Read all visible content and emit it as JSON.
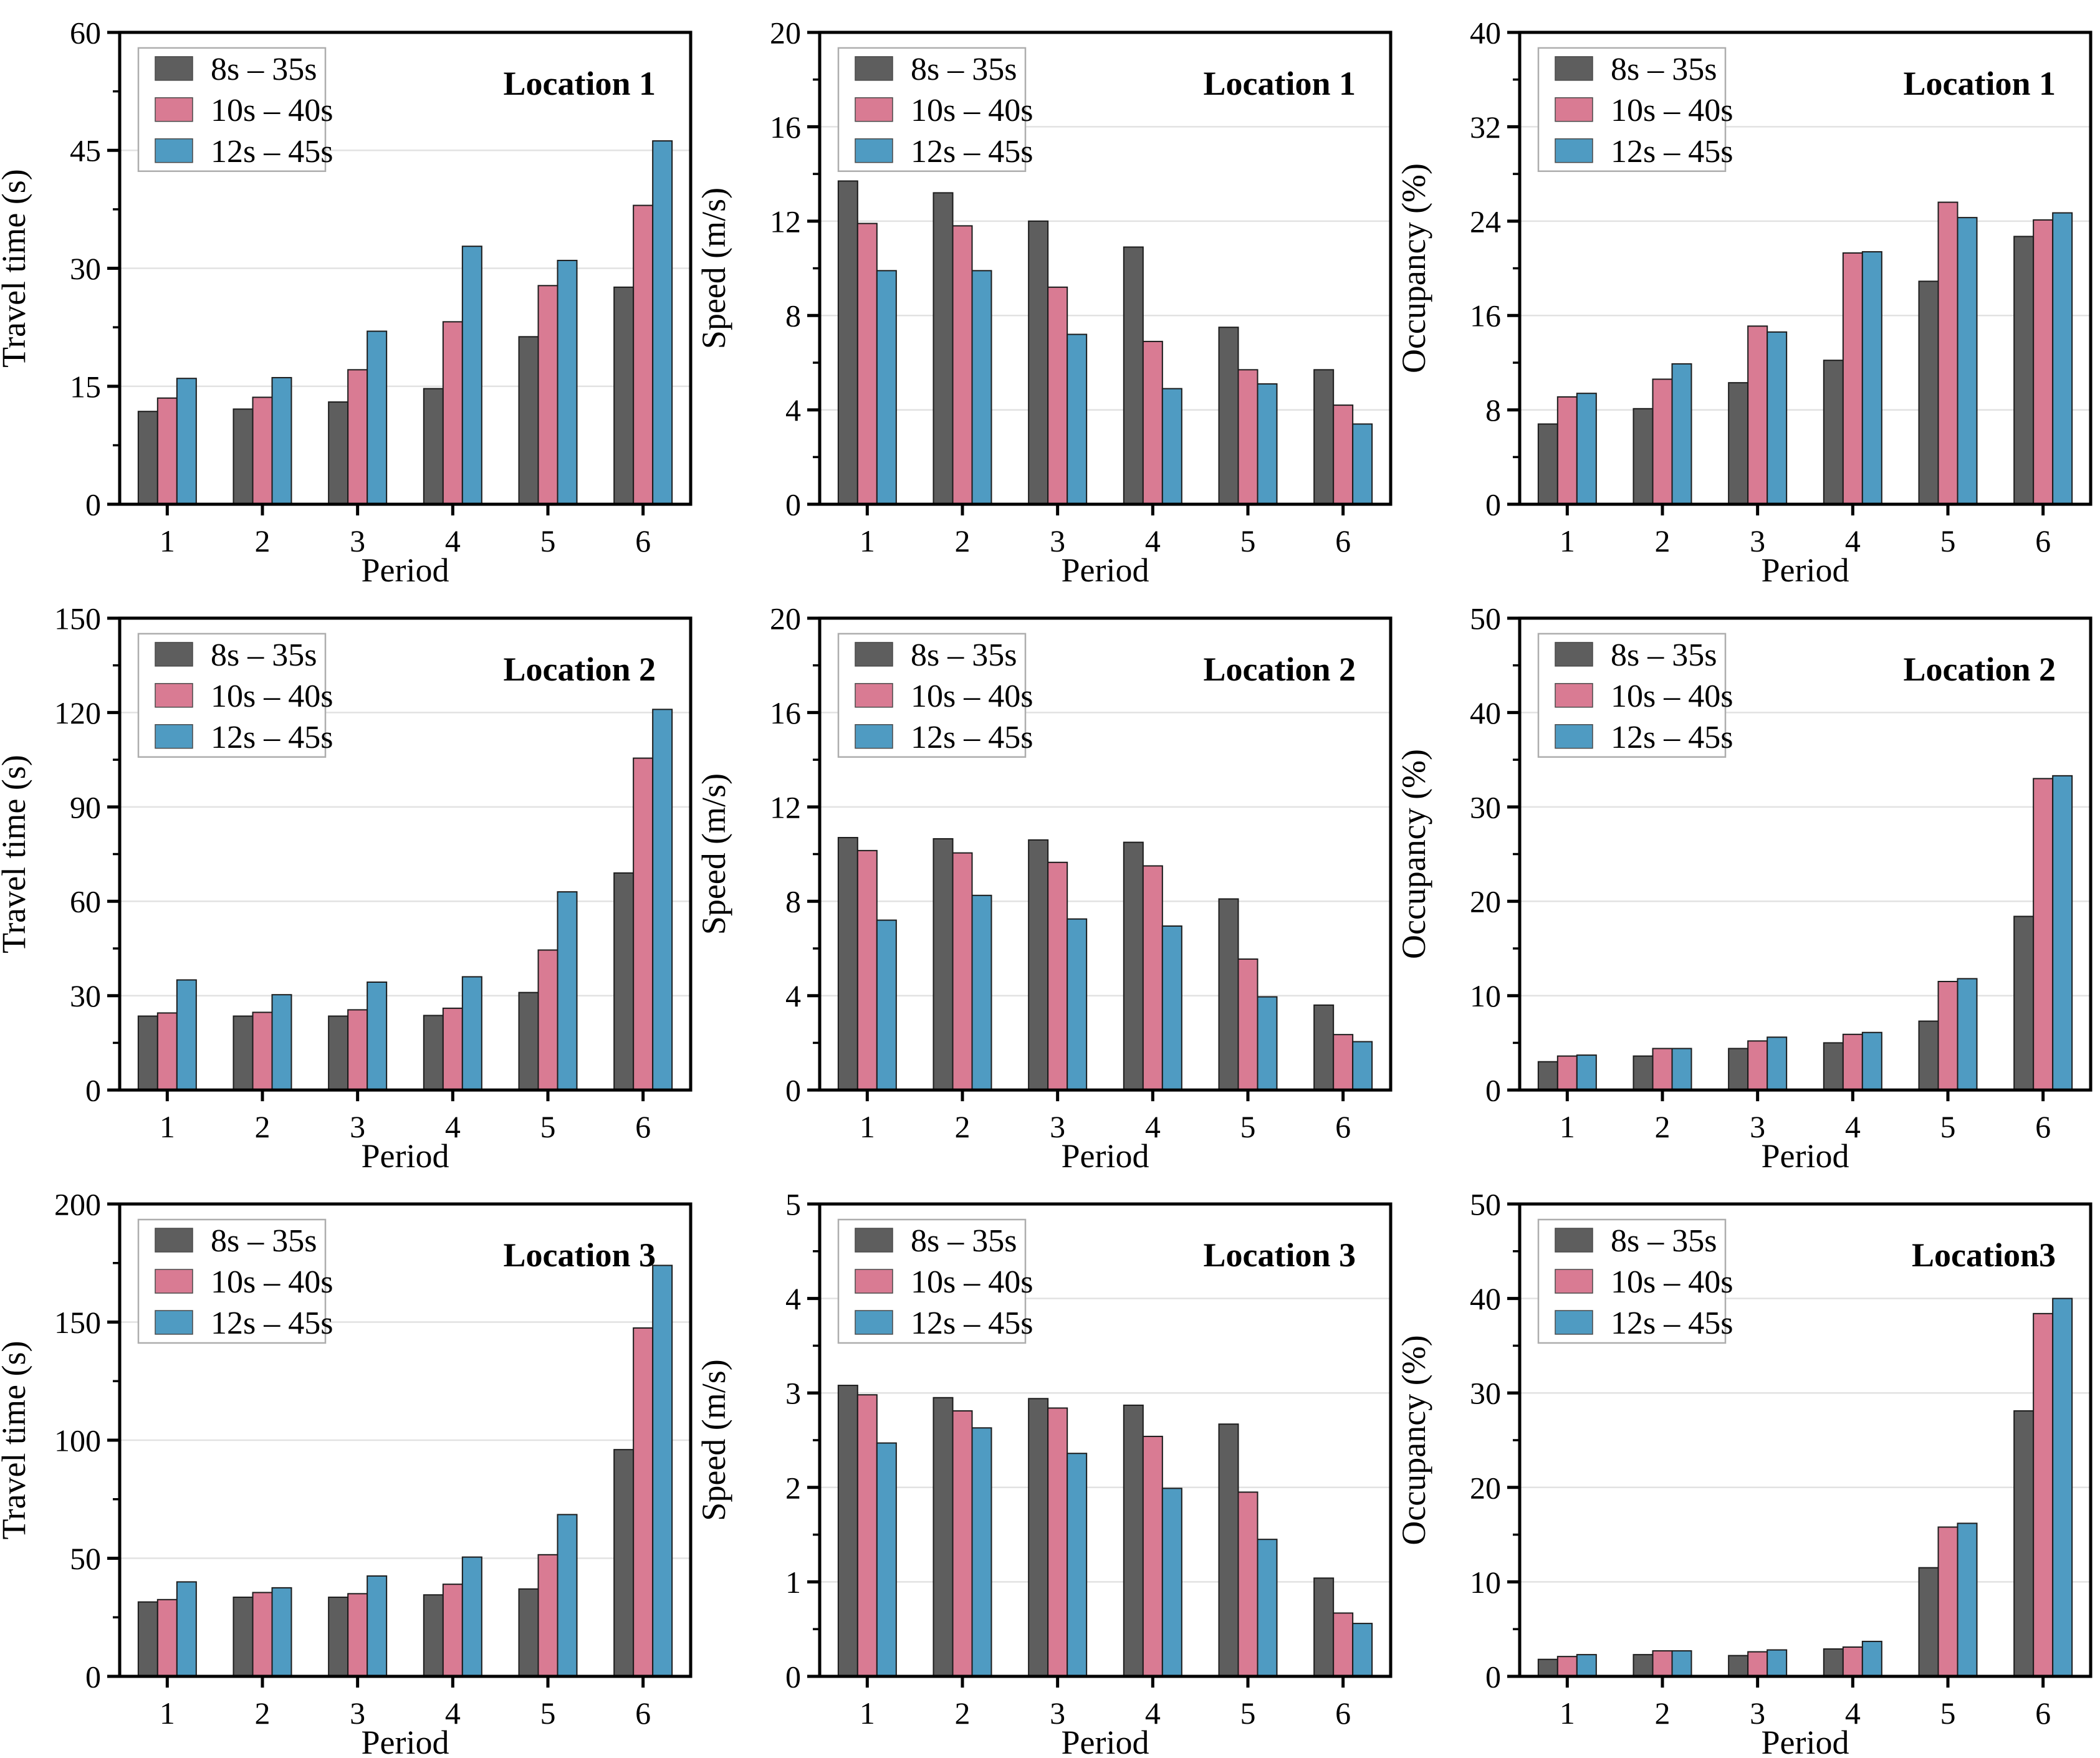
{
  "figure": {
    "categories": [
      "1",
      "2",
      "3",
      "4",
      "5",
      "6"
    ],
    "xlabel": "Period",
    "legend": {
      "position": "top-left",
      "items": [
        "8s – 35s",
        "10s – 40s",
        "12s – 45s"
      ]
    }
  },
  "style": {
    "series_colors": [
      "#5E5E5E",
      "#D97B93",
      "#4F9BC2"
    ],
    "bar_edge_color": "#1c1c1c",
    "grid_color": "#E2E2E2",
    "frame_color": "#000000",
    "legend_border_color": "#ADADAD",
    "background_color": "#ffffff"
  },
  "chart_data": [
    {
      "type": "bar",
      "title": "Location 1",
      "ylabel": "Travel time (s)",
      "xlabel": "Period",
      "ylim": [
        0,
        60
      ],
      "yticks": [
        0,
        15,
        30,
        45,
        60
      ],
      "grid": true,
      "legend_position": "top-left",
      "categories": [
        "1",
        "2",
        "3",
        "4",
        "5",
        "6"
      ],
      "series": [
        {
          "name": "8s – 35s",
          "values": [
            11.8,
            12.1,
            13.0,
            14.7,
            21.3,
            27.6
          ]
        },
        {
          "name": "10s – 40s",
          "values": [
            13.5,
            13.6,
            17.1,
            23.2,
            27.8,
            38.0
          ]
        },
        {
          "name": "12s – 45s",
          "values": [
            16.0,
            16.1,
            22.0,
            32.8,
            31.0,
            46.2
          ]
        }
      ]
    },
    {
      "type": "bar",
      "title": "Location 1",
      "ylabel": "Speed (m/s)",
      "xlabel": "Period",
      "ylim": [
        0,
        20
      ],
      "yticks": [
        0,
        4,
        8,
        12,
        16,
        20
      ],
      "grid": true,
      "legend_position": "top-left",
      "categories": [
        "1",
        "2",
        "3",
        "4",
        "5",
        "6"
      ],
      "series": [
        {
          "name": "8s – 35s",
          "values": [
            13.7,
            13.2,
            12.0,
            10.9,
            7.5,
            5.7
          ]
        },
        {
          "name": "10s – 40s",
          "values": [
            11.9,
            11.8,
            9.2,
            6.9,
            5.7,
            4.2
          ]
        },
        {
          "name": "12s – 45s",
          "values": [
            9.9,
            9.9,
            7.2,
            4.9,
            5.1,
            3.4
          ]
        }
      ]
    },
    {
      "type": "bar",
      "title": "Location 1",
      "ylabel": "Occupancy (%)",
      "xlabel": "Period",
      "ylim": [
        0,
        40
      ],
      "yticks": [
        0,
        8,
        16,
        24,
        32,
        40
      ],
      "grid": true,
      "legend_position": "top-left",
      "categories": [
        "1",
        "2",
        "3",
        "4",
        "5",
        "6"
      ],
      "series": [
        {
          "name": "8s – 35s",
          "values": [
            6.8,
            8.1,
            10.3,
            12.2,
            18.9,
            22.7
          ]
        },
        {
          "name": "10s – 40s",
          "values": [
            9.1,
            10.6,
            15.1,
            21.3,
            25.6,
            24.1
          ]
        },
        {
          "name": "12s – 45s",
          "values": [
            9.4,
            11.9,
            14.6,
            21.4,
            24.3,
            24.7
          ]
        }
      ]
    },
    {
      "type": "bar",
      "title": "Location 2",
      "ylabel": "Travel time (s)",
      "xlabel": "Period",
      "ylim": [
        0,
        150
      ],
      "yticks": [
        0,
        30,
        60,
        90,
        120,
        150
      ],
      "grid": true,
      "legend_position": "top-left",
      "categories": [
        "1",
        "2",
        "3",
        "4",
        "5",
        "6"
      ],
      "series": [
        {
          "name": "8s – 35s",
          "values": [
            23.5,
            23.5,
            23.5,
            23.7,
            31.0,
            69.0
          ]
        },
        {
          "name": "10s – 40s",
          "values": [
            24.5,
            24.7,
            25.5,
            26.0,
            44.5,
            105.5
          ]
        },
        {
          "name": "12s – 45s",
          "values": [
            35.0,
            30.3,
            34.3,
            36.0,
            63.0,
            121.0
          ]
        }
      ]
    },
    {
      "type": "bar",
      "title": "Location 2",
      "ylabel": "Speed (m/s)",
      "xlabel": "Period",
      "ylim": [
        0,
        20
      ],
      "yticks": [
        0,
        4,
        8,
        12,
        16,
        20
      ],
      "grid": true,
      "legend_position": "top-left",
      "categories": [
        "1",
        "2",
        "3",
        "4",
        "5",
        "6"
      ],
      "series": [
        {
          "name": "8s – 35s",
          "values": [
            10.7,
            10.65,
            10.6,
            10.5,
            8.1,
            3.6
          ]
        },
        {
          "name": "10s – 40s",
          "values": [
            10.15,
            10.05,
            9.65,
            9.5,
            5.55,
            2.35
          ]
        },
        {
          "name": "12s – 45s",
          "values": [
            7.2,
            8.25,
            7.25,
            6.95,
            3.95,
            2.05
          ]
        }
      ]
    },
    {
      "type": "bar",
      "title": "Location 2",
      "ylabel": "Occupancy (%)",
      "xlabel": "Period",
      "ylim": [
        0,
        50
      ],
      "yticks": [
        0,
        10,
        20,
        30,
        40,
        50
      ],
      "grid": true,
      "legend_position": "top-left",
      "categories": [
        "1",
        "2",
        "3",
        "4",
        "5",
        "6"
      ],
      "series": [
        {
          "name": "8s – 35s",
          "values": [
            3.0,
            3.6,
            4.4,
            5.0,
            7.3,
            18.4
          ]
        },
        {
          "name": "10s – 40s",
          "values": [
            3.6,
            4.4,
            5.2,
            5.9,
            11.5,
            33.0
          ]
        },
        {
          "name": "12s – 45s",
          "values": [
            3.7,
            4.4,
            5.6,
            6.1,
            11.8,
            33.3
          ]
        }
      ]
    },
    {
      "type": "bar",
      "title": "Location 3",
      "ylabel": "Travel time (s)",
      "xlabel": "Period",
      "ylim": [
        0,
        200
      ],
      "yticks": [
        0,
        50,
        100,
        150,
        200
      ],
      "grid": true,
      "legend_position": "top-left",
      "categories": [
        "1",
        "2",
        "3",
        "4",
        "5",
        "6"
      ],
      "series": [
        {
          "name": "8s – 35s",
          "values": [
            31.5,
            33.5,
            33.5,
            34.5,
            37.0,
            96.0
          ]
        },
        {
          "name": "10s – 40s",
          "values": [
            32.5,
            35.5,
            35.0,
            39.0,
            51.5,
            147.5
          ]
        },
        {
          "name": "12s – 45s",
          "values": [
            40.0,
            37.5,
            42.5,
            50.5,
            68.5,
            174.0
          ]
        }
      ]
    },
    {
      "type": "bar",
      "title": "Location 3",
      "ylabel": "Speed (m/s)",
      "xlabel": "Period",
      "ylim": [
        0,
        5
      ],
      "yticks": [
        0,
        1,
        2,
        3,
        4,
        5
      ],
      "grid": true,
      "legend_position": "top-left",
      "categories": [
        "1",
        "2",
        "3",
        "4",
        "5",
        "6"
      ],
      "series": [
        {
          "name": "8s – 35s",
          "values": [
            3.08,
            2.95,
            2.94,
            2.87,
            2.67,
            1.04
          ]
        },
        {
          "name": "10s – 40s",
          "values": [
            2.98,
            2.81,
            2.84,
            2.54,
            1.95,
            0.67
          ]
        },
        {
          "name": "12s – 45s",
          "values": [
            2.47,
            2.63,
            2.36,
            1.99,
            1.45,
            0.56
          ]
        }
      ]
    },
    {
      "type": "bar",
      "title": "Location3",
      "ylabel": "Occupancy (%)",
      "xlabel": "Period",
      "ylim": [
        0,
        50
      ],
      "yticks": [
        0,
        10,
        20,
        30,
        40,
        50
      ],
      "grid": true,
      "legend_position": "top-left",
      "categories": [
        "1",
        "2",
        "3",
        "4",
        "5",
        "6"
      ],
      "series": [
        {
          "name": "8s – 35s",
          "values": [
            1.8,
            2.3,
            2.2,
            2.9,
            11.5,
            28.1
          ]
        },
        {
          "name": "10s – 40s",
          "values": [
            2.1,
            2.7,
            2.6,
            3.1,
            15.8,
            38.4
          ]
        },
        {
          "name": "12s – 45s",
          "values": [
            2.3,
            2.7,
            2.8,
            3.7,
            16.2,
            40.0
          ]
        }
      ]
    }
  ]
}
